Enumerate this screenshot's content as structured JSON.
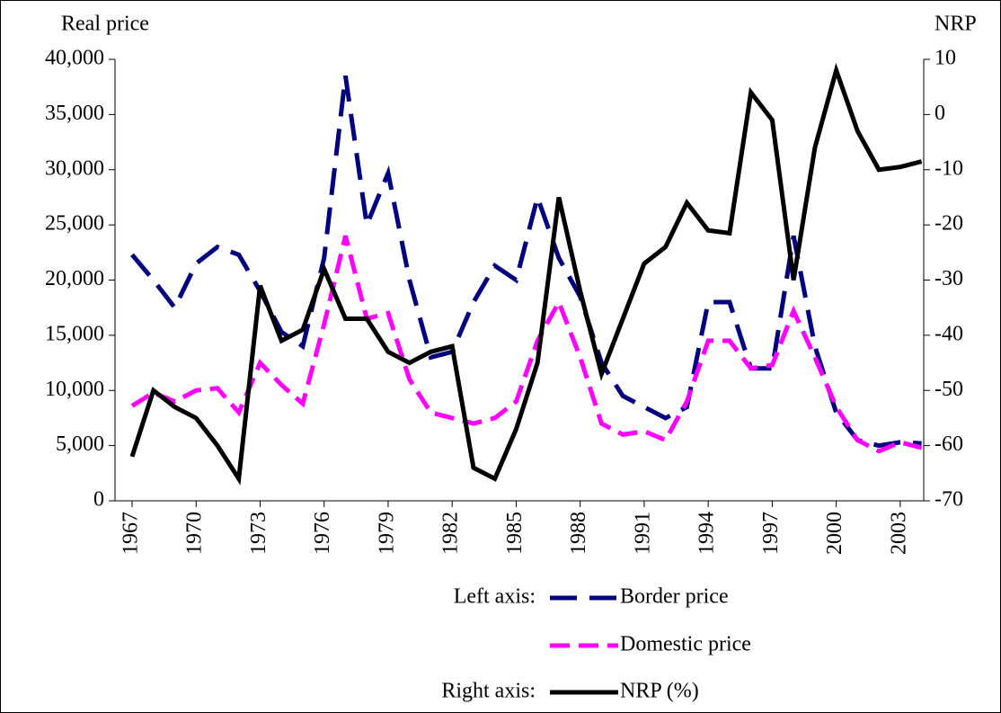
{
  "chart_data": {
    "type": "line",
    "ylabel": "Real price",
    "y2label": "NRP",
    "x": [
      1967,
      1968,
      1969,
      1970,
      1971,
      1972,
      1973,
      1974,
      1975,
      1976,
      1977,
      1978,
      1979,
      1980,
      1981,
      1982,
      1983,
      1984,
      1985,
      1986,
      1987,
      1988,
      1989,
      1990,
      1991,
      1992,
      1993,
      1994,
      1995,
      1996,
      1997,
      1998,
      1999,
      2000,
      2001,
      2002,
      2003,
      2004
    ],
    "xlim": [
      1966.2,
      2004.1
    ],
    "xticks": [
      1967,
      1970,
      1973,
      1976,
      1979,
      1982,
      1985,
      1988,
      1991,
      1994,
      1997,
      2000,
      2003
    ],
    "ylim": [
      0,
      40000
    ],
    "yticks": [
      0,
      {
        "value": 5000,
        "label": "5,000"
      },
      {
        "value": 10000,
        "label": "10,000"
      },
      {
        "value": 15000,
        "label": "15,000"
      },
      {
        "value": 20000,
        "label": "20,000"
      },
      {
        "value": 25000,
        "label": "25,000"
      },
      {
        "value": 30000,
        "label": "30,000"
      },
      {
        "value": 35000,
        "label": "35,000"
      },
      {
        "value": 40000,
        "label": "40,000"
      }
    ],
    "y2lim": [
      -70,
      10
    ],
    "y2ticks": [
      -70,
      -60,
      -50,
      -40,
      -30,
      -20,
      -10,
      0,
      10
    ],
    "legend_groups": [
      "Left axis:",
      "Right axis:"
    ],
    "series": [
      {
        "name": "Border price",
        "color": "#000080",
        "dash": "long",
        "values": [
          22300,
          20000,
          17500,
          21500,
          23000,
          22300,
          19000,
          15300,
          14000,
          22000,
          38500,
          25000,
          29700,
          20000,
          13000,
          13500,
          18000,
          21300,
          20000,
          27500,
          22000,
          18500,
          12500,
          9500,
          8500,
          7500,
          8500,
          18000,
          18000,
          12000,
          12000,
          24000,
          14000,
          8000,
          5500,
          5000,
          5300,
          5200
        ]
      },
      {
        "name": "Domestic price",
        "color": "#ff00ff",
        "dash": "short",
        "values": [
          8600,
          9800,
          9000,
          10000,
          10200,
          8000,
          12500,
          10500,
          8800,
          16000,
          24000,
          16500,
          17000,
          11000,
          8000,
          7500,
          7000,
          7500,
          9000,
          14500,
          18000,
          13000,
          7000,
          6000,
          6300,
          5500,
          9000,
          14500,
          14500,
          12000,
          12300,
          17200,
          13000,
          8500,
          5500,
          4500,
          5300,
          4800
        ]
      },
      {
        "name": "NRP (%)",
        "color": "#000000",
        "dash": "solid",
        "axis": "y2",
        "values": [
          -62,
          -50,
          -53,
          -55,
          -60,
          -66,
          -31,
          -41,
          -39,
          -28,
          -37,
          -37,
          -43,
          -45,
          -43,
          -42,
          -64,
          -66,
          -57,
          -45,
          -15,
          -32,
          -47,
          -37,
          -27,
          -24,
          -16,
          -21,
          -21.5,
          4,
          -1,
          -30,
          -6,
          8,
          -3,
          -10,
          -9.5,
          -8.5
        ]
      }
    ]
  }
}
